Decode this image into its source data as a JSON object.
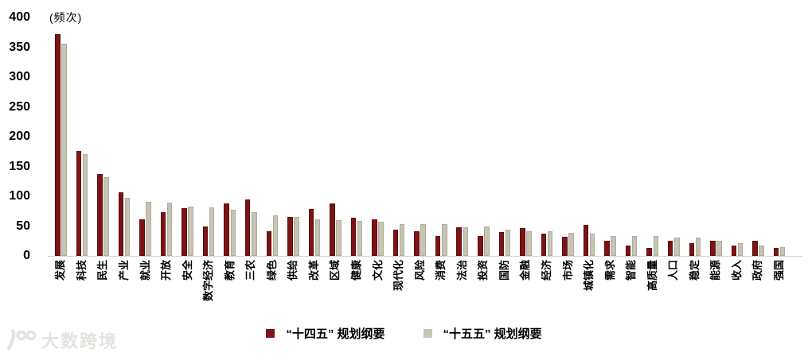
{
  "chart_data": {
    "type": "bar",
    "title": "",
    "unit_label": "(频次)",
    "xlabel": "",
    "ylabel": "",
    "ylim": [
      0,
      400
    ],
    "yticks": [
      0,
      50,
      100,
      150,
      200,
      250,
      300,
      350,
      400
    ],
    "grid": false,
    "legend_position": "bottom",
    "categories": [
      "发展",
      "科技",
      "民生",
      "产业",
      "就业",
      "开放",
      "安全",
      "数字经济",
      "教育",
      "三农",
      "绿色",
      "供给",
      "改革",
      "区域",
      "健康",
      "文化",
      "现代化",
      "风险",
      "消费",
      "法治",
      "投资",
      "国防",
      "金融",
      "经济",
      "市场",
      "城镇化",
      "需求",
      "智能",
      "高质量",
      "人口",
      "稳定",
      "能源",
      "收入",
      "政府",
      "强国"
    ],
    "series": [
      {
        "name": "“十四五” 规划纲要",
        "color": "#7e1315",
        "edge_color": "#5c0c0e",
        "values": [
          372,
          176,
          138,
          107,
          61,
          73,
          80,
          50,
          88,
          95,
          42,
          66,
          79,
          88,
          64,
          61,
          44,
          42,
          33,
          48,
          33,
          40,
          47,
          37,
          32,
          52,
          25,
          17,
          14,
          25,
          21,
          25,
          18,
          25,
          14
        ]
      },
      {
        "name": "“十五五” 规划纲要",
        "color": "#c7c4b4",
        "edge_color": "#aeab9b",
        "values": [
          356,
          171,
          132,
          97,
          91,
          89,
          83,
          81,
          78,
          73,
          68,
          65,
          62,
          60,
          59,
          57,
          54,
          54,
          54,
          48,
          49,
          44,
          41,
          41,
          39,
          38,
          34,
          34,
          34,
          31,
          31,
          26,
          21,
          18,
          15
        ]
      }
    ]
  },
  "watermark": {
    "text": "大数跨境"
  }
}
